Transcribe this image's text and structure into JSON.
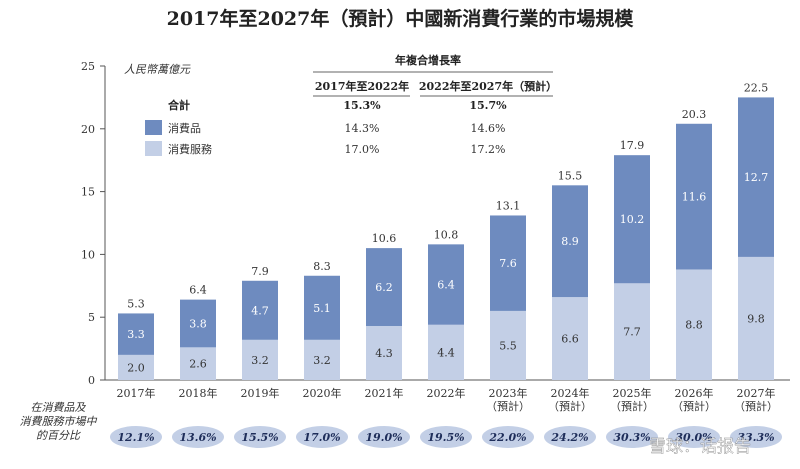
{
  "chart_data": {
    "type": "bar",
    "stacked": true,
    "title": "2017年至2027年（預計）中國新消費行業的市場規模",
    "unit": "人民幣萬億元",
    "ylim": [
      0,
      25
    ],
    "yticks": [
      "0",
      "5",
      "10",
      "15",
      "20",
      "25"
    ],
    "categories": [
      [
        "2017年"
      ],
      [
        "2018年"
      ],
      [
        "2019年"
      ],
      [
        "2020年"
      ],
      [
        "2021年"
      ],
      [
        "2022年"
      ],
      [
        "2023年",
        "（預計）"
      ],
      [
        "2024年",
        "（預計）"
      ],
      [
        "2025年",
        "（預計）"
      ],
      [
        "2026年",
        "（預計）"
      ],
      [
        "2027年",
        "（預計）"
      ]
    ],
    "series": [
      {
        "name": "消費服務",
        "color": "#c3cfe6",
        "values": [
          2.0,
          2.6,
          3.2,
          3.2,
          4.3,
          4.4,
          5.5,
          6.6,
          7.7,
          8.8,
          9.8
        ]
      },
      {
        "name": "消費品",
        "color": "#6e8bbf",
        "values": [
          3.3,
          3.8,
          4.7,
          5.1,
          6.2,
          6.4,
          7.6,
          8.9,
          10.2,
          11.6,
          12.7
        ]
      }
    ],
    "totals": [
      5.3,
      6.4,
      7.9,
      8.3,
      10.6,
      10.8,
      13.1,
      15.5,
      17.9,
      20.3,
      22.5
    ],
    "growth_table": {
      "header": "年複合增長率",
      "col1": "2017年至2022年",
      "col2": "2022年至2027年（預計）",
      "rows": [
        {
          "label": "合計",
          "v1": "15.3%",
          "v2": "15.7%"
        },
        {
          "label": "消費品",
          "v1": "14.3%",
          "v2": "14.6%"
        },
        {
          "label": "消費服務",
          "v1": "17.0%",
          "v2": "17.2%"
        }
      ]
    },
    "share_label": [
      "在消費品及",
      "消費服務市場中",
      "的百分比"
    ],
    "shares": [
      "12.1%",
      "13.6%",
      "15.5%",
      "17.0%",
      "19.0%",
      "19.5%",
      "22.0%",
      "24.2%",
      "30.3%",
      "30.0%",
      "33.3%"
    ],
    "colors": {
      "axis": "#555555",
      "ellipse": "#c3cfe6",
      "ellipse_text": "#1f2e5a"
    }
  },
  "watermark": "雪球：话报告"
}
